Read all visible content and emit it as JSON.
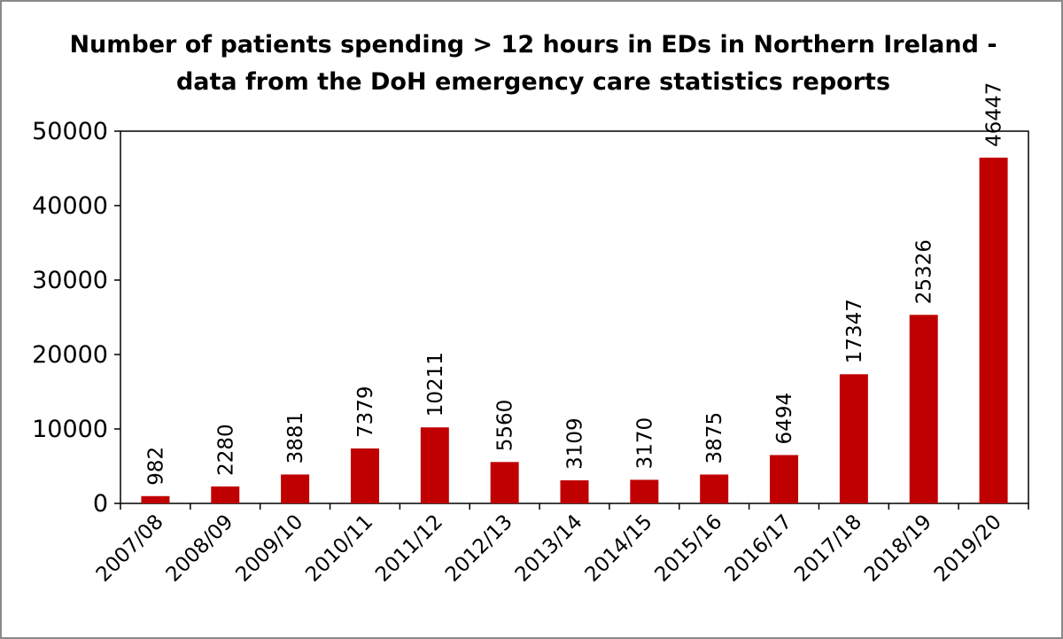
{
  "chart_data": {
    "type": "bar",
    "title_line1": "Number of patients spending > 12 hours in EDs in Northern Ireland -",
    "title_line2": "data from the DoH emergency care statistics reports",
    "categories": [
      "2007/08",
      "2008/09",
      "2009/10",
      "2010/11",
      "2011/12",
      "2012/13",
      "2013/14",
      "2014/15",
      "2015/16",
      "2016/17",
      "2017/18",
      "2018/19",
      "2019/20"
    ],
    "values": [
      982,
      2280,
      3881,
      7379,
      10211,
      5560,
      3109,
      3170,
      3875,
      6494,
      17347,
      25326,
      46447
    ],
    "ylim": [
      0,
      50000
    ],
    "yticks": [
      0,
      10000,
      20000,
      30000,
      40000,
      50000
    ],
    "bar_color": "#c00000",
    "data_labels": true,
    "grid": false,
    "legend": "none"
  }
}
